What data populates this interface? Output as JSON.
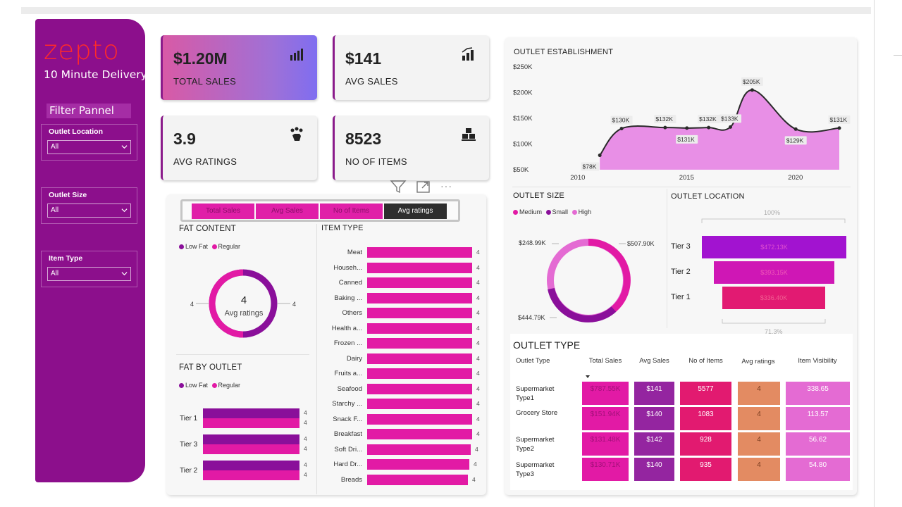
{
  "app": {
    "logo": "zepto",
    "tagline": "10 Minute Delivery"
  },
  "filters": {
    "title": "Filter Pannel",
    "slicers": [
      {
        "label": "Outlet Location",
        "value": "All"
      },
      {
        "label": "Outlet Size",
        "value": "All"
      },
      {
        "label": "Item Type",
        "value": "All"
      }
    ]
  },
  "kpis": [
    {
      "value": "$1.20M",
      "label": "TOTAL SALES",
      "icon": "bar-chart-icon"
    },
    {
      "value": "$141",
      "label": "AVG SALES",
      "icon": "growth-chart-icon"
    },
    {
      "value": "3.9",
      "label": "AVG RATINGS",
      "icon": "rating-hand-icon"
    },
    {
      "value": "8523",
      "label": "NO OF ITEMS",
      "icon": "boxes-icon"
    }
  ],
  "tabs": [
    "Total Sales",
    "Avg Sales",
    "No of Items",
    "Avg ratings"
  ],
  "fat_content": {
    "title": "FAT CONTENT",
    "legend": [
      "Low Fat",
      "Regular"
    ],
    "center_value": "4",
    "center_label": "Avg ratings",
    "left_label": "4",
    "right_label": "4"
  },
  "fat_by_outlet": {
    "title": "FAT BY OUTLET",
    "legend": [
      "Low Fat",
      "Regular"
    ],
    "rows": [
      {
        "label": "Tier 1",
        "low": "4",
        "regular": "4"
      },
      {
        "label": "Tier 3",
        "low": "4",
        "regular": "4"
      },
      {
        "label": "Tier 2",
        "low": "4",
        "regular": "4"
      }
    ]
  },
  "item_type": {
    "title": "ITEM TYPE",
    "rows": [
      {
        "label": "Meat",
        "value": "4"
      },
      {
        "label": "Househ...",
        "value": "4"
      },
      {
        "label": "Canned",
        "value": "4"
      },
      {
        "label": "Baking ...",
        "value": "4"
      },
      {
        "label": "Others",
        "value": "4"
      },
      {
        "label": "Health a...",
        "value": "4"
      },
      {
        "label": "Frozen ...",
        "value": "4"
      },
      {
        "label": "Dairy",
        "value": "4"
      },
      {
        "label": "Fruits a...",
        "value": "4"
      },
      {
        "label": "Seafood",
        "value": "4"
      },
      {
        "label": "Starchy ...",
        "value": "4"
      },
      {
        "label": "Snack F...",
        "value": "4"
      },
      {
        "label": "Breakfast",
        "value": "4"
      },
      {
        "label": "Soft Dri...",
        "value": "4"
      },
      {
        "label": "Hard Dr...",
        "value": "4"
      },
      {
        "label": "Breads",
        "value": "4"
      }
    ]
  },
  "outlet_establishment": {
    "title": "OUTLET ESTABLISHMENT",
    "y_ticks": [
      "$250K",
      "$200K",
      "$150K",
      "$100K",
      "$50K"
    ],
    "x_ticks": [
      "2010",
      "2015",
      "2020"
    ],
    "points": [
      {
        "x": 2011,
        "y": 78,
        "label": "$78K"
      },
      {
        "x": 2012,
        "y": 130,
        "label": "$130K"
      },
      {
        "x": 2014,
        "y": 132,
        "label": "$132K"
      },
      {
        "x": 2015,
        "y": 131,
        "label": "$131K"
      },
      {
        "x": 2016,
        "y": 132,
        "label": "$132K"
      },
      {
        "x": 2017,
        "y": 133,
        "label": "$133K"
      },
      {
        "x": 2018,
        "y": 205,
        "label": "$205K"
      },
      {
        "x": 2020,
        "y": 129,
        "label": "$129K"
      },
      {
        "x": 2022,
        "y": 131,
        "label": "$131K"
      }
    ]
  },
  "outlet_size": {
    "title": "OUTLET SIZE",
    "legend": [
      "Medium",
      "Small",
      "High"
    ],
    "labels": [
      "$507.90K",
      "$444.79K",
      "$248.99K"
    ]
  },
  "outlet_location": {
    "title": "OUTLET LOCATION",
    "top_pct": "100%",
    "bottom_pct": "71.3%",
    "rows": [
      {
        "label": "Tier 3",
        "value": "$472.13K"
      },
      {
        "label": "Tier 2",
        "value": "$393.15K"
      },
      {
        "label": "Tier 1",
        "value": "$336.40K"
      }
    ]
  },
  "outlet_type": {
    "title": "OUTLET TYPE",
    "headers": [
      "Outlet Type",
      "Total Sales",
      "Avg Sales",
      "No of Items",
      "Avg ratings",
      "Item Visibility"
    ],
    "rows": [
      {
        "type": "Supermarket Type1",
        "sales": "$787.55K",
        "avg": "$141",
        "items": "5577",
        "rating": "4",
        "vis": "338.65"
      },
      {
        "type": "Grocery Store",
        "sales": "$151.94K",
        "avg": "$140",
        "items": "1083",
        "rating": "4",
        "vis": "113.57"
      },
      {
        "type": "Supermarket Type2",
        "sales": "$131.48K",
        "avg": "$142",
        "items": "928",
        "rating": "4",
        "vis": "56.62"
      },
      {
        "type": "Supermarket Type3",
        "sales": "$130.71K",
        "avg": "$140",
        "items": "935",
        "rating": "4",
        "vis": "54.80"
      }
    ]
  },
  "colors": {
    "purple": "#8c0f8c",
    "pink": "#e21aa5",
    "orange": "#e38b62",
    "lilac": "#e46bd3"
  }
}
